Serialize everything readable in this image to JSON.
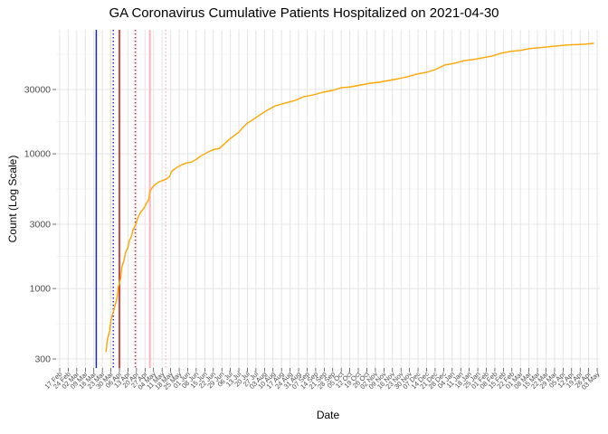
{
  "chart_data": {
    "type": "line",
    "title": "GA Coronavirus Cumulative Patients Hospitalized on 2021-04-30",
    "xlabel": "Date",
    "ylabel": "Count (Log Scale)",
    "y_scale": "log10",
    "background": "#FFFFFF",
    "grid": true,
    "legend": "none",
    "grid_color": "#E4E4E4",
    "grid_minor_color": "#F0F0F0",
    "tick_color": "#333333",
    "tick_label_color": "#4D4D4D",
    "text_color": "#000000",
    "y_ticks": [
      300,
      1000,
      3000,
      10000,
      30000
    ],
    "y_tick_labels": [
      "300",
      "1000",
      "3000",
      "10000",
      "30000"
    ],
    "y_minor_ticks": [
      548,
      1732,
      5477,
      17321,
      54772
    ],
    "ylim": [
      260,
      83000
    ],
    "x_axis_start_date": "2020-02-17",
    "x_tick_interval_days": 7,
    "x_range": [
      "2020-02-14",
      "2021-05-05"
    ],
    "x_tick_labels": [
      "17 Feb",
      "24 Feb",
      "02 Mar",
      "09 Mar",
      "16 Mar",
      "23 Mar",
      "30 Mar",
      "06 Apr",
      "13 Apr",
      "20 Apr",
      "27 Apr",
      "04 May",
      "11 May",
      "18 May",
      "25 May",
      "01 Jun",
      "08 Jun",
      "15 Jun",
      "22 Jun",
      "29 Jun",
      "06 Jul",
      "13 Jul",
      "20 Jul",
      "27 Jul",
      "03 Aug",
      "10 Aug",
      "17 Aug",
      "24 Aug",
      "31 Aug",
      "07 Sep",
      "14 Sep",
      "21 Sep",
      "28 Sep",
      "05 Oct",
      "12 Oct",
      "19 Oct",
      "26 Oct",
      "02 Nov",
      "09 Nov",
      "16 Nov",
      "23 Nov",
      "30 Nov",
      "07 Dec",
      "14 Dec",
      "21 Dec",
      "28 Dec",
      "04 Jan",
      "11 Jan",
      "18 Jan",
      "25 Jan",
      "01 Feb",
      "08 Feb",
      "15 Feb",
      "22 Feb",
      "01 Mar",
      "08 Mar",
      "15 Mar",
      "22 Mar",
      "29 Mar",
      "05 Apr",
      "12 Apr",
      "19 Apr",
      "26 Apr",
      "03 May"
    ],
    "event_lines": [
      {
        "date": "2020-03-18",
        "color": "#2222CC",
        "style": "solid",
        "width": 1.5
      },
      {
        "date": "2020-04-01",
        "color": "#2222CC",
        "style": "dotted",
        "width": 1.5
      },
      {
        "date": "2020-04-06",
        "color": "#E10000",
        "style": "solid",
        "width": 1.5
      },
      {
        "date": "2020-04-19",
        "color": "#B22222",
        "style": "dotted",
        "width": 1.5
      },
      {
        "date": "2020-05-01",
        "color": "#FFB6C1",
        "style": "solid",
        "width": 2.2
      },
      {
        "date": "2020-05-14",
        "color": "#FFBFCA",
        "style": "dotted",
        "width": 2.0
      }
    ],
    "series": [
      {
        "name": "Cumulative Patients Hospitalized",
        "color": "#FFA500",
        "points": [
          [
            "2020-03-26",
            340
          ],
          [
            "2020-03-27",
            409
          ],
          [
            "2020-03-29",
            485
          ],
          [
            "2020-03-30",
            585
          ],
          [
            "2020-04-01",
            672
          ],
          [
            "2020-04-02",
            726
          ],
          [
            "2020-04-04",
            847
          ],
          [
            "2020-04-05",
            1021
          ],
          [
            "2020-04-07",
            1192
          ],
          [
            "2020-04-08",
            1436
          ],
          [
            "2020-04-10",
            1652
          ],
          [
            "2020-04-11",
            1841
          ],
          [
            "2020-04-13",
            2018
          ],
          [
            "2020-04-14",
            2250
          ],
          [
            "2020-04-16",
            2472
          ],
          [
            "2020-04-17",
            2710
          ],
          [
            "2020-04-19",
            2931
          ],
          [
            "2020-04-21",
            3318
          ],
          [
            "2020-04-23",
            3641
          ],
          [
            "2020-04-26",
            3936
          ],
          [
            "2020-04-28",
            4247
          ],
          [
            "2020-04-30",
            4592
          ],
          [
            "2020-05-01",
            5284
          ],
          [
            "2020-05-03",
            5620
          ],
          [
            "2020-05-05",
            5888
          ],
          [
            "2020-05-07",
            6068
          ],
          [
            "2020-05-10",
            6266
          ],
          [
            "2020-05-12",
            6368
          ],
          [
            "2020-05-14",
            6467
          ],
          [
            "2020-05-17",
            6768
          ],
          [
            "2020-05-19",
            7430
          ],
          [
            "2020-05-23",
            7906
          ],
          [
            "2020-05-27",
            8279
          ],
          [
            "2020-05-31",
            8551
          ],
          [
            "2020-06-04",
            8680
          ],
          [
            "2020-06-08",
            9092
          ],
          [
            "2020-06-11",
            9529
          ],
          [
            "2020-06-15",
            9977
          ],
          [
            "2020-06-19",
            10450
          ],
          [
            "2020-06-23",
            10780
          ],
          [
            "2020-06-27",
            10950
          ],
          [
            "2020-07-01",
            11830
          ],
          [
            "2020-07-05",
            12780
          ],
          [
            "2020-07-09",
            13600
          ],
          [
            "2020-07-13",
            14470
          ],
          [
            "2020-07-16",
            15600
          ],
          [
            "2020-07-20",
            16900
          ],
          [
            "2020-07-24",
            17800
          ],
          [
            "2020-07-28",
            18840
          ],
          [
            "2020-08-01",
            19900
          ],
          [
            "2020-08-05",
            21000
          ],
          [
            "2020-08-12",
            22700
          ],
          [
            "2020-08-20",
            23770
          ],
          [
            "2020-08-28",
            24900
          ],
          [
            "2020-09-04",
            26480
          ],
          [
            "2020-09-12",
            27330
          ],
          [
            "2020-09-20",
            28640
          ],
          [
            "2020-09-28",
            29530
          ],
          [
            "2020-10-05",
            30940
          ],
          [
            "2020-10-13",
            31400
          ],
          [
            "2020-10-21",
            32430
          ],
          [
            "2020-10-29",
            33440
          ],
          [
            "2020-11-05",
            33970
          ],
          [
            "2020-11-13",
            35040
          ],
          [
            "2020-11-21",
            36130
          ],
          [
            "2020-11-28",
            37270
          ],
          [
            "2020-12-06",
            39050
          ],
          [
            "2020-12-14",
            40260
          ],
          [
            "2020-12-21",
            42180
          ],
          [
            "2020-12-29",
            45600
          ],
          [
            "2021-01-06",
            47000
          ],
          [
            "2021-01-14",
            49250
          ],
          [
            "2021-01-21",
            50030
          ],
          [
            "2021-01-29",
            51600
          ],
          [
            "2021-02-06",
            53240
          ],
          [
            "2021-02-13",
            55760
          ],
          [
            "2021-02-21",
            57550
          ],
          [
            "2021-03-01",
            58450
          ],
          [
            "2021-03-08",
            60290
          ],
          [
            "2021-03-16",
            61230
          ],
          [
            "2021-03-24",
            62190
          ],
          [
            "2021-03-31",
            63160
          ],
          [
            "2021-04-08",
            64160
          ],
          [
            "2021-04-16",
            64700
          ],
          [
            "2021-04-23",
            65160
          ],
          [
            "2021-04-30",
            66000
          ]
        ]
      }
    ]
  }
}
